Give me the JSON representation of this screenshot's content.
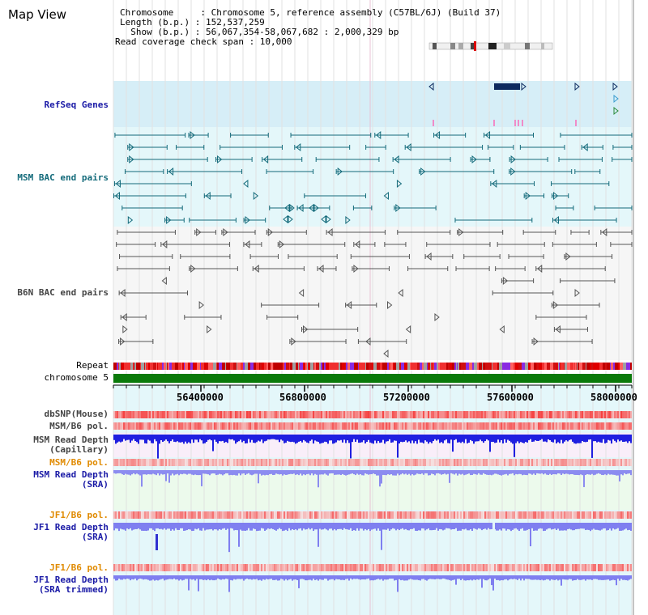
{
  "header": {
    "title": "Map View",
    "chromosome_line": "Chromosome     : Chromosome 5, reference assembly (C57BL/6J) (Build 37)",
    "length_line": "Length (b.p.) : 152,537,259",
    "show_line": "  Show (b.p.) : 56,067,354-58,067,682 : 2,000,329 bp",
    "coverage_line": "Read coverage check span : 10,000"
  },
  "tracks": {
    "refseq": {
      "label": "RefSeq Genes",
      "color": "#1a1aa6"
    },
    "msm_bac": {
      "label": "MSM BAC end pairs",
      "color": "#136a7a"
    },
    "b6n_bac": {
      "label": "B6N BAC end pairs",
      "color": "#444444"
    },
    "repeat": {
      "label": "Repeat"
    },
    "chromosome": {
      "label": "chromosome 5"
    },
    "dbsnp": {
      "label": "dbSNP(Mouse)"
    },
    "msm_b6_pol_1": {
      "label": "MSM/B6 pol."
    },
    "msm_depth_cap": {
      "line1": "MSM Read Depth",
      "line2": "(Capillary)"
    },
    "msm_b6_pol_2": {
      "label": "MSM/B6 pol."
    },
    "msm_depth_sra": {
      "line1": "MSM Read Depth",
      "line2": "(SRA)"
    },
    "jf1_b6_pol_1": {
      "label": "JF1/B6 pol."
    },
    "jf1_depth_sra": {
      "line1": "JF1 Read Depth",
      "line2": "(SRA)"
    },
    "jf1_b6_pol_2": {
      "label": "JF1/B6 pol."
    },
    "jf1_depth_trim": {
      "line1": "JF1 Read Depth",
      "line2": "(SRA trimmed)"
    }
  },
  "ruler": {
    "ticks": [
      "56400000",
      "56800000",
      "57200000",
      "57600000",
      "58000000"
    ]
  },
  "colors": {
    "pol_heat": "#e8323c",
    "depth_blue_dark": "#1f1fe0",
    "depth_blue_light": "#7f7ff0",
    "chromosome_green": "#0a7a0a",
    "gene_navy": "#0d2a5e",
    "pol_label_orange": "#e08a00"
  }
}
